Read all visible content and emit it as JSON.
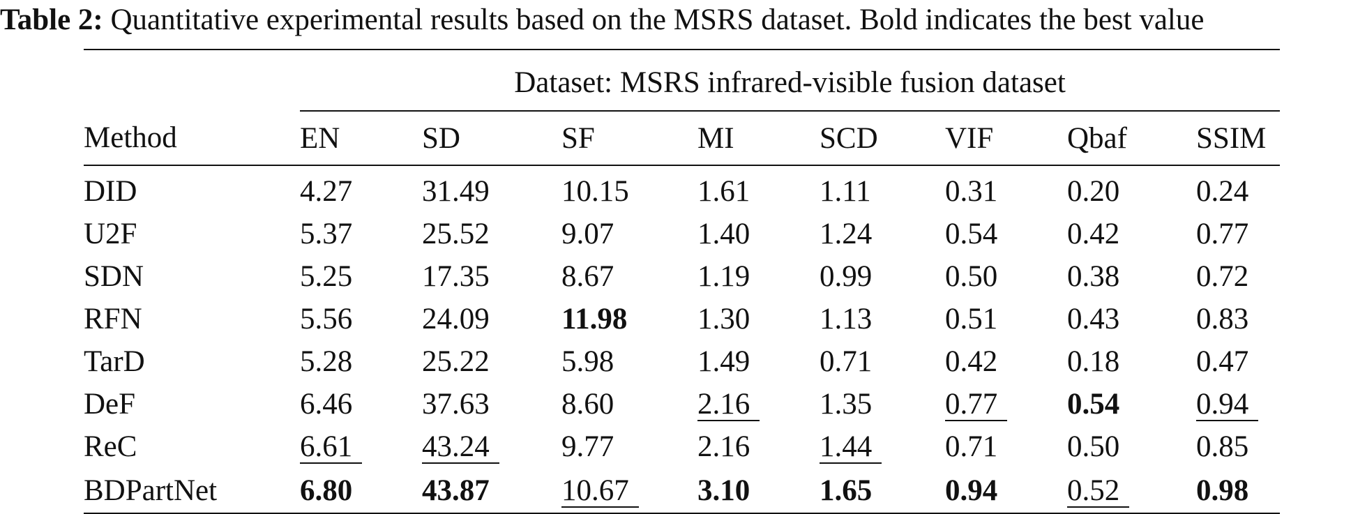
{
  "caption": {
    "label": "Table 2:",
    "text": " Quantitative experimental results based on the MSRS dataset. Bold indicates the best value"
  },
  "table": {
    "group_header": "Dataset: MSRS infrared-visible fusion dataset",
    "method_header": "Method",
    "columns": [
      "EN",
      "SD",
      "SF",
      "MI",
      "SCD",
      "VIF",
      "Qbaf",
      "SSIM"
    ],
    "rows": [
      {
        "method": "DID",
        "values": [
          "4.27",
          "31.49",
          "10.15",
          "1.61",
          "1.11",
          "0.31",
          "0.20",
          "0.24"
        ],
        "styles": [
          "",
          "",
          "",
          "",
          "",
          "",
          "",
          ""
        ]
      },
      {
        "method": "U2F",
        "values": [
          "5.37",
          "25.52",
          "9.07",
          "1.40",
          "1.24",
          "0.54",
          "0.42",
          "0.77"
        ],
        "styles": [
          "",
          "",
          "",
          "",
          "",
          "",
          "",
          ""
        ]
      },
      {
        "method": "SDN",
        "values": [
          "5.25",
          "17.35",
          "8.67",
          "1.19",
          "0.99",
          "0.50",
          "0.38",
          "0.72"
        ],
        "styles": [
          "",
          "",
          "",
          "",
          "",
          "",
          "",
          ""
        ]
      },
      {
        "method": "RFN",
        "values": [
          "5.56",
          "24.09",
          "11.98",
          "1.30",
          "1.13",
          "0.51",
          "0.43",
          "0.83"
        ],
        "styles": [
          "",
          "",
          "best",
          "",
          "",
          "",
          "",
          ""
        ]
      },
      {
        "method": "TarD",
        "values": [
          "5.28",
          "25.22",
          "5.98",
          "1.49",
          "0.71",
          "0.42",
          "0.18",
          "0.47"
        ],
        "styles": [
          "",
          "",
          "",
          "",
          "",
          "",
          "",
          ""
        ]
      },
      {
        "method": "DeF",
        "values": [
          "6.46",
          "37.63",
          "8.60",
          "2.16",
          "1.35",
          "0.77",
          "0.54",
          "0.94"
        ],
        "styles": [
          "",
          "",
          "",
          "second",
          "",
          "second",
          "best",
          "second"
        ]
      },
      {
        "method": "ReC",
        "values": [
          "6.61",
          "43.24",
          "9.77",
          "2.16",
          "1.44",
          "0.71",
          "0.50",
          "0.85"
        ],
        "styles": [
          "second",
          "second",
          "",
          "",
          "second",
          "",
          "",
          ""
        ]
      },
      {
        "method": "BDPartNet",
        "values": [
          "6.80",
          "43.87",
          "10.67",
          "3.10",
          "1.65",
          "0.94",
          "0.52",
          "0.98"
        ],
        "styles": [
          "best",
          "best",
          "second",
          "best",
          "best",
          "best",
          "second",
          "best"
        ]
      }
    ]
  }
}
